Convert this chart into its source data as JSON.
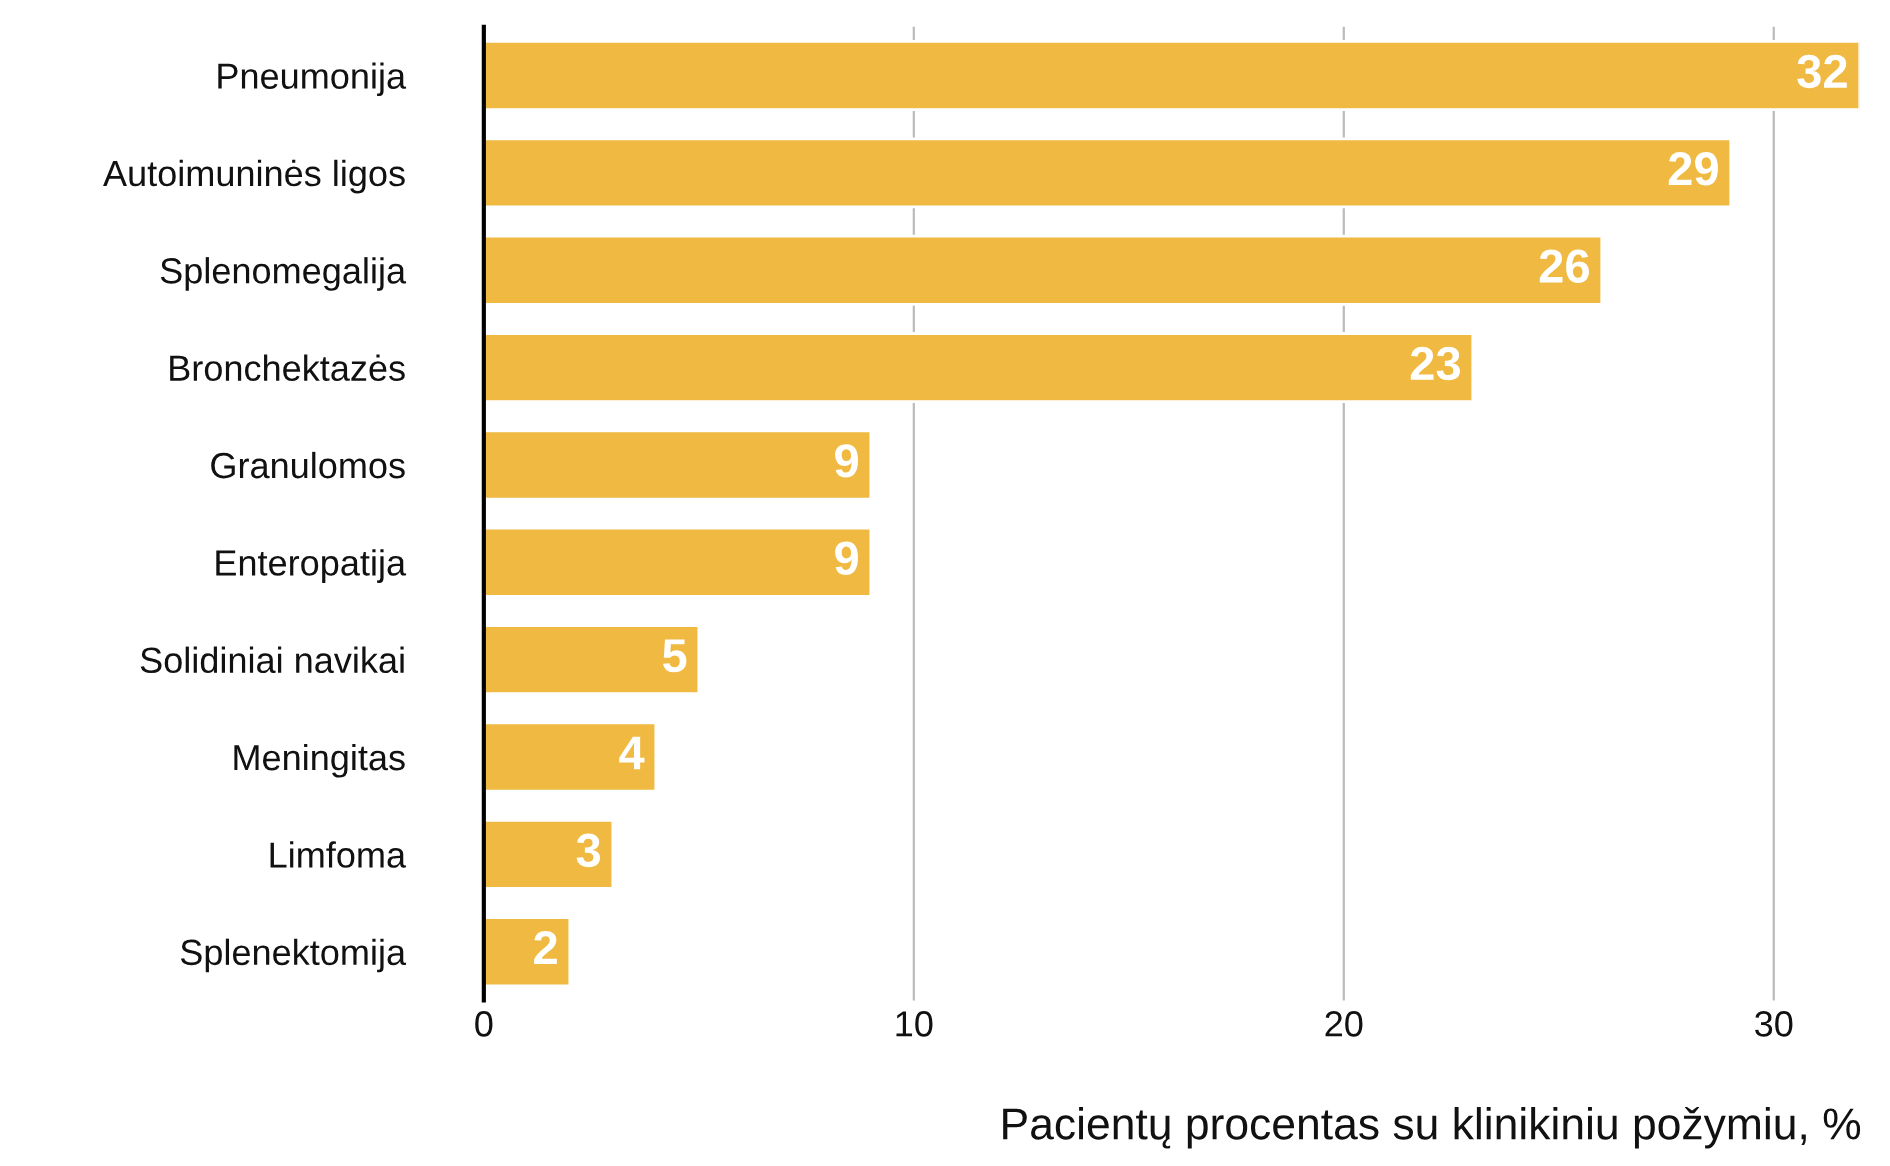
{
  "chart_data": {
    "type": "bar",
    "orientation": "horizontal",
    "xlabel": "Pacientų procentas su klinikiniu požymiu, %",
    "categories": [
      "Pneumonija",
      "Autoimuninės ligos",
      "Splenomegalija",
      "Bronchektazės",
      "Granulomos",
      "Enteropatija",
      "Solidiniai navikai",
      "Meningitas",
      "Limfoma",
      "Splenektomija"
    ],
    "values": [
      32,
      29,
      26,
      23,
      9,
      9,
      5,
      4,
      3,
      2
    ],
    "color": "#f0b942",
    "xlim": [
      0,
      32
    ],
    "xticks": [
      0,
      10,
      20,
      30
    ],
    "grid": "x",
    "data_labels": true
  }
}
